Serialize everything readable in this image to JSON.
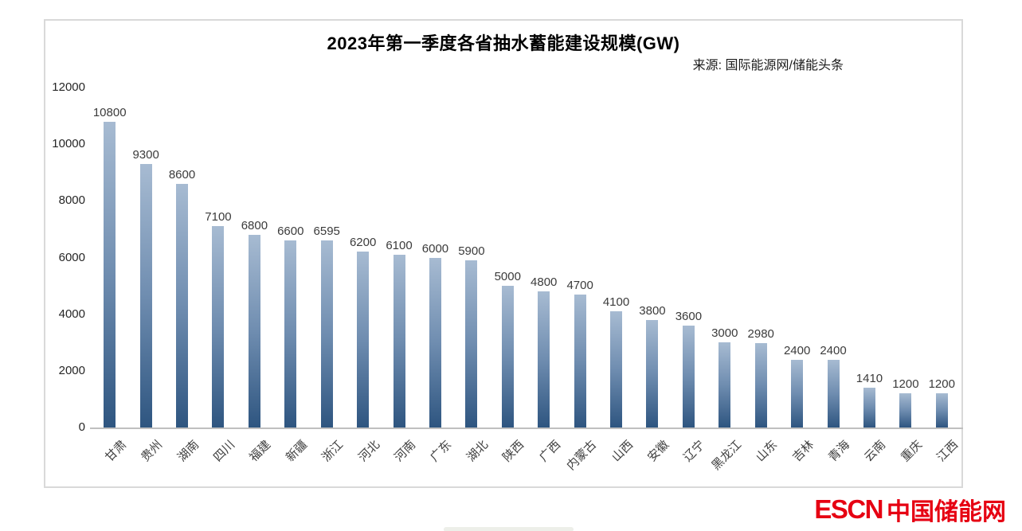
{
  "chart": {
    "style": {
      "bar_gradient_top": "#a7bbd2",
      "bar_gradient_mid": "#6f8db0",
      "bar_gradient_bottom": "#2e5580",
      "axis_line_color": "#bfbfbf",
      "value_label_color": "#3b3b3b",
      "category_label_color": "#404040",
      "tick_label_color": "#262626",
      "frame_border_color": "#d9d9d9"
    }
  },
  "chart_data": {
    "type": "bar",
    "title": "2023年第一季度各省抽水蓄能建设规模(GW)",
    "source": "来源: 国际能源网/储能头条",
    "categories": [
      "甘肃",
      "贵州",
      "湖南",
      "四川",
      "福建",
      "新疆",
      "浙江",
      "河北",
      "河南",
      "广东",
      "湖北",
      "陕西",
      "广西",
      "内蒙古",
      "山西",
      "安徽",
      "辽宁",
      "黑龙江",
      "山东",
      "吉林",
      "青海",
      "云南",
      "重庆",
      "江西"
    ],
    "values": [
      10800,
      9300,
      8600,
      7100,
      6800,
      6600,
      6595,
      6200,
      6100,
      6000,
      5900,
      5000,
      4800,
      4700,
      4100,
      3800,
      3600,
      3000,
      2980,
      2400,
      2400,
      1410,
      1200,
      1200
    ],
    "ylim": [
      0,
      12000
    ],
    "yticks": [
      0,
      2000,
      4000,
      6000,
      8000,
      10000,
      12000
    ],
    "grid": false,
    "legend": false,
    "data_labels": true,
    "xlabel": "",
    "ylabel": ""
  },
  "footer": {
    "logo_text_en": "ESCN",
    "logo_text_cn": "中国储能网",
    "logo_color": "#e60012"
  }
}
